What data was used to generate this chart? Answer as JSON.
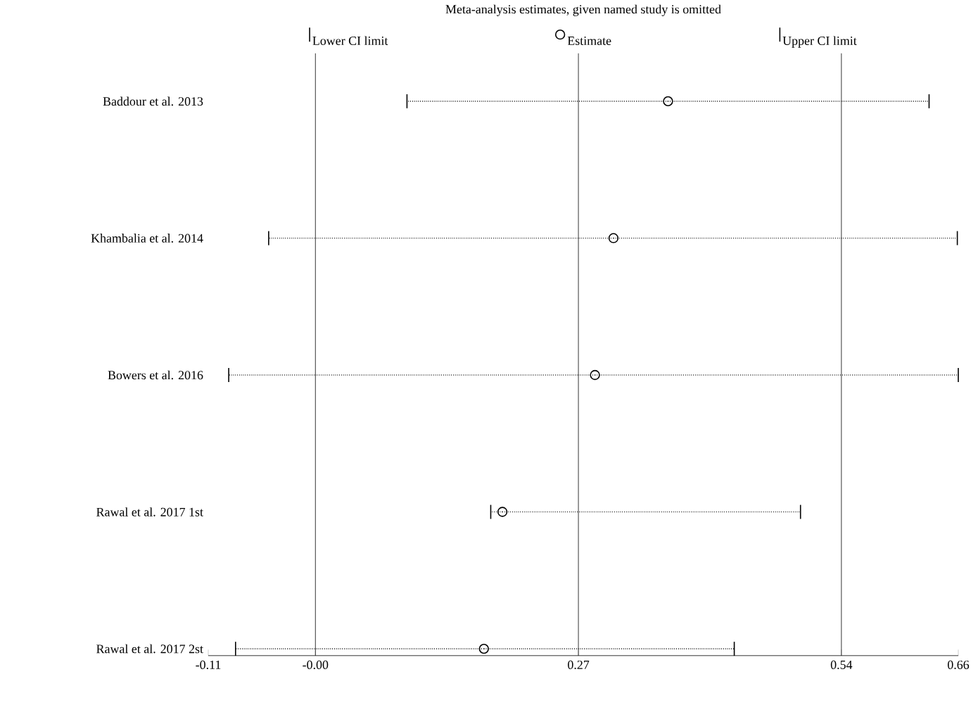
{
  "chart_data": {
    "type": "scatter",
    "orientation": "horizontal",
    "title": "Meta-analysis estimates, given named study is omitted",
    "categories": [
      "Baddour et al. 2013",
      "Khambalia et al. 2014",
      "Bowers et al. 2016",
      "Rawal et al. 2017 1st",
      "Rawal et al. 2017 2st"
    ],
    "series": [
      {
        "name": "Estimate",
        "color": "#000000",
        "marker": "circle",
        "values": [
          0.362,
          0.306,
          0.287,
          0.192,
          0.173
        ],
        "errors": [
          [
            0.094,
            0.63
          ],
          [
            -0.048,
            0.659
          ],
          [
            -0.089,
            0.66
          ],
          [
            0.18,
            0.498
          ],
          [
            -0.082,
            0.43
          ]
        ],
        "line_style": "dotted"
      }
    ],
    "annotations": [
      "Lower CI limit",
      "Upper CI limit"
    ],
    "xlim": [
      -0.11,
      0.66
    ],
    "xticks": [
      -0.11,
      {
        "value": 0,
        "label": "-0.00"
      },
      0.27,
      0.54,
      0.66
    ],
    "ref_lines": [
      {
        "axis": "x",
        "value": 0
      },
      {
        "axis": "x",
        "value": 0.27
      },
      {
        "axis": "x",
        "value": 0.54
      }
    ],
    "legend": "top"
  }
}
